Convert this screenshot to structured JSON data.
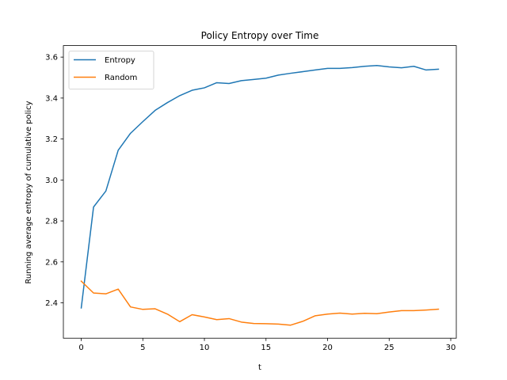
{
  "chart_data": {
    "type": "line",
    "title": "Policy Entropy over Time",
    "xlabel": "t",
    "ylabel": "Running average entropy of cumulative policy",
    "xlim": [
      -1.45,
      30.45
    ],
    "ylim": [
      2.2273,
      3.6562
    ],
    "xticks": [
      0,
      5,
      10,
      15,
      20,
      25,
      30
    ],
    "yticks": [
      2.4,
      2.6,
      2.8,
      3.0,
      3.2,
      3.4,
      3.6
    ],
    "ytick_labels": [
      "2.4",
      "2.6",
      "2.8",
      "3.0",
      "3.2",
      "3.4",
      "3.6"
    ],
    "legend_position": "upper-left",
    "grid": false,
    "x": [
      0,
      1,
      2,
      3,
      4,
      5,
      6,
      7,
      8,
      9,
      10,
      11,
      12,
      13,
      14,
      15,
      16,
      17,
      18,
      19,
      20,
      21,
      22,
      23,
      24,
      25,
      26,
      27,
      28,
      29
    ],
    "series": [
      {
        "name": "Entropy",
        "color": "#1f77b4",
        "values": [
          2.375,
          2.868,
          2.946,
          3.145,
          3.228,
          3.285,
          3.34,
          3.378,
          3.412,
          3.438,
          3.45,
          3.475,
          3.471,
          3.485,
          3.491,
          3.497,
          3.512,
          3.521,
          3.529,
          3.537,
          3.545,
          3.545,
          3.549,
          3.555,
          3.559,
          3.552,
          3.548,
          3.555,
          3.537,
          3.541
        ]
      },
      {
        "name": "Random",
        "color": "#ff7f0e",
        "values": [
          2.506,
          2.448,
          2.444,
          2.467,
          2.38,
          2.368,
          2.371,
          2.345,
          2.308,
          2.342,
          2.331,
          2.318,
          2.323,
          2.306,
          2.299,
          2.298,
          2.296,
          2.291,
          2.31,
          2.337,
          2.345,
          2.35,
          2.345,
          2.349,
          2.347,
          2.355,
          2.362,
          2.362,
          2.365,
          2.369
        ]
      }
    ]
  }
}
